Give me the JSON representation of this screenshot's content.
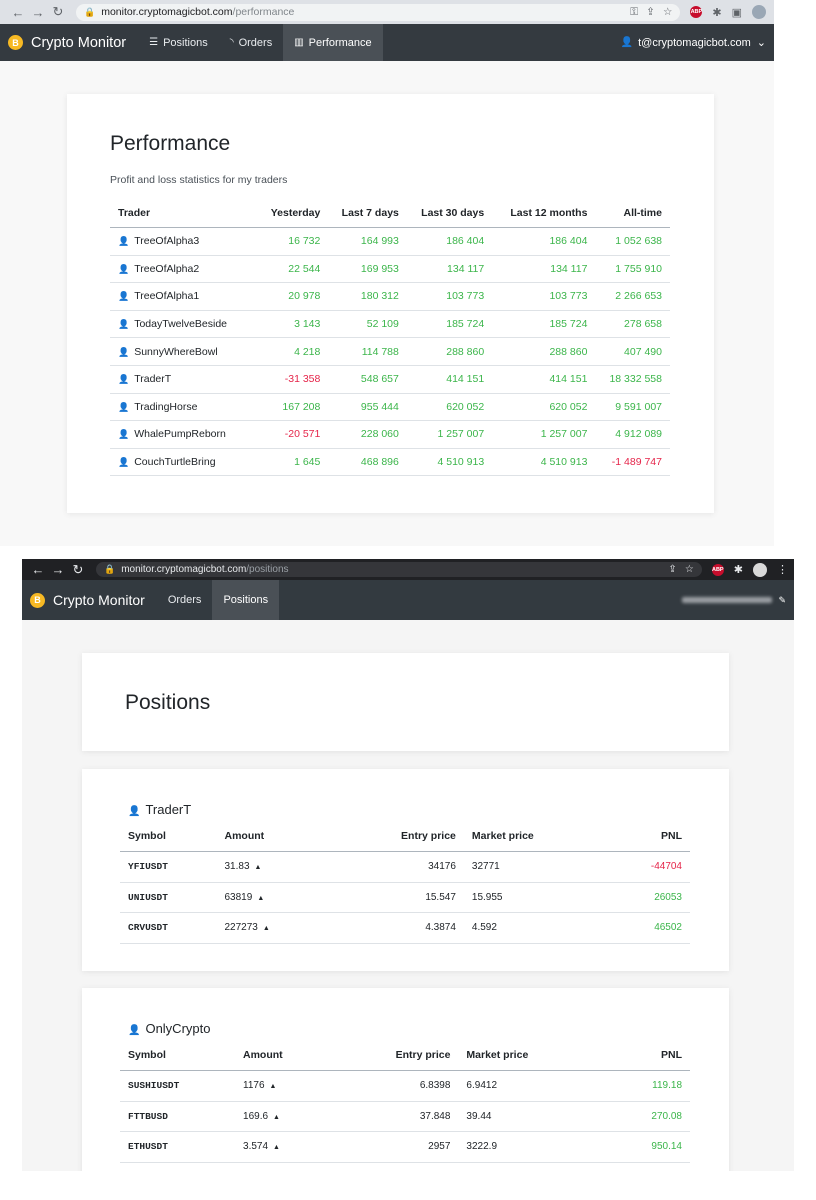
{
  "shot1": {
    "url_host": "monitor.cryptomagicbot.com",
    "url_path": "/performance",
    "brand": "Crypto Monitor",
    "nav": [
      {
        "label": "Positions",
        "icon": "list-icon"
      },
      {
        "label": "Orders",
        "icon": "rss-icon"
      },
      {
        "label": "Performance",
        "icon": "bar-chart-icon",
        "active": true
      }
    ],
    "user_email": "t@cryptomagicbot.com",
    "title": "Performance",
    "subtitle": "Profit and loss statistics for my traders",
    "table": {
      "headers": [
        "Trader",
        "Yesterday",
        "Last 7 days",
        "Last 30 days",
        "Last 12 months",
        "All-time"
      ],
      "rows": [
        {
          "trader": "TreeOfAlpha3",
          "values": [
            "16 732",
            "164 993",
            "186 404",
            "186 404",
            "1 052 638"
          ],
          "neg": [
            false,
            false,
            false,
            false,
            false
          ]
        },
        {
          "trader": "TreeOfAlpha2",
          "values": [
            "22 544",
            "169 953",
            "134 117",
            "134 117",
            "1 755 910"
          ],
          "neg": [
            false,
            false,
            false,
            false,
            false
          ]
        },
        {
          "trader": "TreeOfAlpha1",
          "values": [
            "20 978",
            "180 312",
            "103 773",
            "103 773",
            "2 266 653"
          ],
          "neg": [
            false,
            false,
            false,
            false,
            false
          ]
        },
        {
          "trader": "TodayTwelveBeside",
          "values": [
            "3 143",
            "52 109",
            "185 724",
            "185 724",
            "278 658"
          ],
          "neg": [
            false,
            false,
            false,
            false,
            false
          ]
        },
        {
          "trader": "SunnyWhereBowl",
          "values": [
            "4 218",
            "114 788",
            "288 860",
            "288 860",
            "407 490"
          ],
          "neg": [
            false,
            false,
            false,
            false,
            false
          ]
        },
        {
          "trader": "TraderT",
          "values": [
            "-31 358",
            "548 657",
            "414 151",
            "414 151",
            "18 332 558"
          ],
          "neg": [
            true,
            false,
            false,
            false,
            false
          ]
        },
        {
          "trader": "TradingHorse",
          "values": [
            "167 208",
            "955 444",
            "620 052",
            "620 052",
            "9 591 007"
          ],
          "neg": [
            false,
            false,
            false,
            false,
            false
          ]
        },
        {
          "trader": "WhalePumpReborn",
          "values": [
            "-20 571",
            "228 060",
            "1 257 007",
            "1 257 007",
            "4 912 089"
          ],
          "neg": [
            true,
            false,
            false,
            false,
            false
          ]
        },
        {
          "trader": "CouchTurtleBring",
          "values": [
            "1 645",
            "468 896",
            "4 510 913",
            "4 510 913",
            "-1 489 747"
          ],
          "neg": [
            false,
            false,
            false,
            false,
            true
          ]
        }
      ]
    }
  },
  "shot2": {
    "url_host": "monitor.cryptomagicbot.com",
    "url_path": "/positions",
    "brand": "Crypto Monitor",
    "nav": [
      {
        "label": "Orders",
        "active": false
      },
      {
        "label": "Positions",
        "active": true
      }
    ],
    "title": "Positions",
    "headers": [
      "Symbol",
      "Amount",
      "Entry price",
      "Market price",
      "PNL"
    ],
    "traders": [
      {
        "name": "TraderT",
        "rows": [
          {
            "symbol": "YFIUSDT",
            "amount": "31.83",
            "entry": "34176",
            "market": "32771",
            "pnl": "-44704",
            "neg": true
          },
          {
            "symbol": "UNIUSDT",
            "amount": "63819",
            "entry": "15.547",
            "market": "15.955",
            "pnl": "26053",
            "neg": false
          },
          {
            "symbol": "CRVUSDT",
            "amount": "227273",
            "entry": "4.3874",
            "market": "4.592",
            "pnl": "46502",
            "neg": false
          }
        ]
      },
      {
        "name": "OnlyCrypto",
        "rows": [
          {
            "symbol": "SUSHIUSDT",
            "amount": "1176",
            "entry": "6.8398",
            "market": "6.9412",
            "pnl": "119.18",
            "neg": false
          },
          {
            "symbol": "FTTBUSD",
            "amount": "169.6",
            "entry": "37.848",
            "market": "39.44",
            "pnl": "270.08",
            "neg": false
          },
          {
            "symbol": "ETHUSDT",
            "amount": "3.574",
            "entry": "2957",
            "market": "3222.9",
            "pnl": "950.14",
            "neg": false
          }
        ]
      }
    ]
  },
  "colors": {
    "positive": "#3bb54a",
    "negative": "#e5254a",
    "navbar": "#343a40"
  }
}
